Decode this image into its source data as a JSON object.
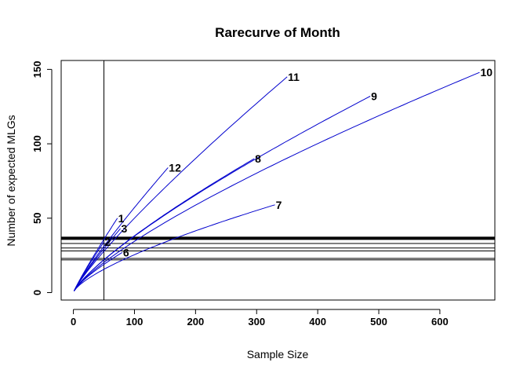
{
  "chart_data": {
    "type": "line",
    "title": "Rarecurve of Month",
    "xlabel": "Sample Size",
    "ylabel": "Number of expected MLGs",
    "xlim": [
      -20,
      690
    ],
    "ylim": [
      -5,
      156
    ],
    "xticks": [
      0,
      100,
      200,
      300,
      400,
      500,
      600
    ],
    "yticks": [
      0,
      50,
      100,
      150
    ],
    "x_tick_labels": [
      "0",
      "100",
      "200",
      "300",
      "400",
      "500",
      "600"
    ],
    "y_tick_labels": [
      "0",
      "50",
      "100",
      "150"
    ],
    "grid": false,
    "series_color": "#0000cd",
    "vline": {
      "x": 50
    },
    "hlines": [
      {
        "y": 37,
        "bold": true
      },
      {
        "y": 36,
        "bold": true
      },
      {
        "y": 33,
        "bold": false
      },
      {
        "y": 30,
        "bold": false
      },
      {
        "y": 28,
        "bold": false
      },
      {
        "y": 23,
        "bold": false
      },
      {
        "y": 22,
        "bold": false
      }
    ],
    "series": [
      {
        "label": "1",
        "n": 72,
        "s": 50
      },
      {
        "label": "2",
        "n": 50,
        "s": 34
      },
      {
        "label": "3",
        "n": 77,
        "s": 43
      },
      {
        "label": "6",
        "n": 80,
        "s": 27
      },
      {
        "label": "7",
        "n": 330,
        "s": 59
      },
      {
        "label": "8",
        "n": 296,
        "s": 90
      },
      {
        "label": "9",
        "n": 486,
        "s": 132
      },
      {
        "label": "10",
        "n": 665,
        "s": 148
      },
      {
        "label": "11",
        "n": 350,
        "s": 145
      },
      {
        "label": "12",
        "n": 155,
        "s": 84
      }
    ]
  }
}
